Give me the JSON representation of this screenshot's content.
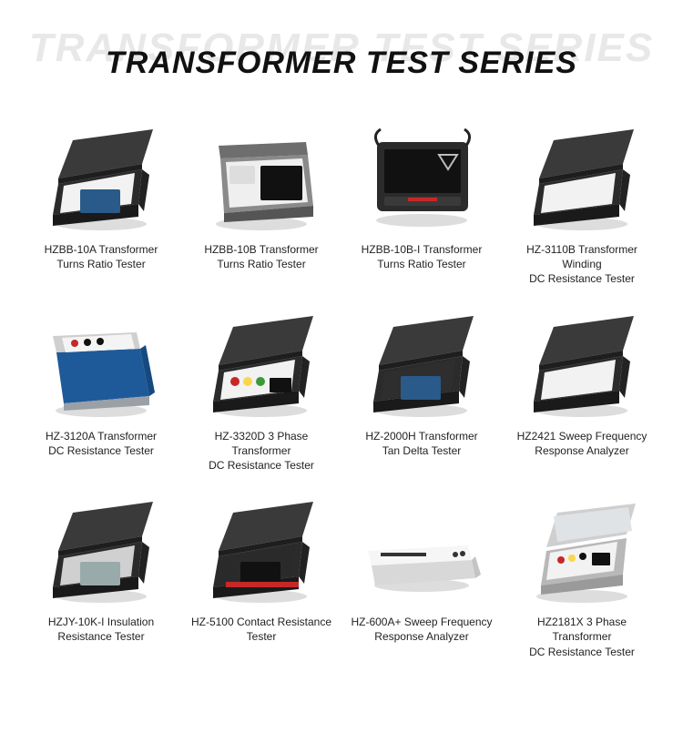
{
  "header": {
    "title_bg": "TRANSFORMER TEST SERIES",
    "title_fg": "TRANSFORMER TEST SERIES"
  },
  "palette": {
    "case_dark": "#2b2b2b",
    "case_mid": "#3a3a3a",
    "case_light": "#b8b8b8",
    "case_grey": "#8a8a8a",
    "screen_blue": "#2a5a8a",
    "accent_red": "#c62828",
    "accent_orange": "#ef6c00",
    "metal_blue": "#1e5a9a",
    "silver": "#cfcfcf",
    "panel_white": "#f2f2f2",
    "shadow": "#dddddd"
  },
  "products": [
    {
      "id": "hzbb-10a",
      "label": "HZBB-10A Transformer\nTurns Ratio Tester",
      "style": "dark_open_blue"
    },
    {
      "id": "hzbb-10b",
      "label": "HZBB-10B Transformer\nTurns Ratio Tester",
      "style": "grey_box_angled"
    },
    {
      "id": "hzbb-10b-i",
      "label": "HZBB-10B-I Transformer\nTurns Ratio Tester",
      "style": "tablet_dark"
    },
    {
      "id": "hz-3110b",
      "label": "HZ-3110B Transformer Winding\nDC Resistance Tester",
      "style": "dark_open_blank"
    },
    {
      "id": "hz-3120a",
      "label": "HZ-3120A Transformer\nDC Resistance Tester",
      "style": "blue_metal_box"
    },
    {
      "id": "hz-3320d",
      "label": "HZ-3320D 3 Phase Transformer\nDC Resistance Tester",
      "style": "dark_open_knobs"
    },
    {
      "id": "hz-2000h",
      "label": "HZ-2000H Transformer\nTan Delta Tester",
      "style": "dark_open_bluescreen"
    },
    {
      "id": "hz2421",
      "label": "HZ2421 Sweep Frequency\nResponse Analyzer",
      "style": "dark_open_blank"
    },
    {
      "id": "hzjy-10k-i",
      "label": "HZJY-10K-I Insulation\nResistance Tester",
      "style": "dark_open_small"
    },
    {
      "id": "hz-5100",
      "label": "HZ-5100 Contact Resistance\nTester",
      "style": "dark_open_redstrip"
    },
    {
      "id": "hz-600a",
      "label": "HZ-600A+ Sweep Frequency\nResponse Analyzer",
      "style": "flat_white_box"
    },
    {
      "id": "hz2181x",
      "label": "HZ2181X 3 Phase Transformer\nDC Resistance Tester",
      "style": "silver_open"
    }
  ]
}
